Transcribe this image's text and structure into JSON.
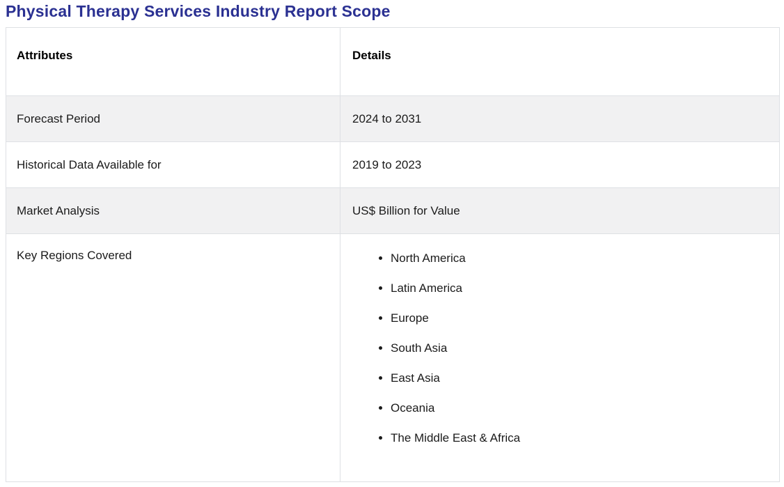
{
  "page": {
    "title": "Physical Therapy Services Industry Report Scope"
  },
  "table": {
    "headers": [
      "Attributes",
      "Details"
    ],
    "rows": [
      {
        "attribute": "Forecast Period",
        "detail": "2024 to 2031"
      },
      {
        "attribute": "Historical Data Available for",
        "detail": "2019 to 2023"
      },
      {
        "attribute": "Market Analysis",
        "detail": "US$ Billion for Value"
      },
      {
        "attribute": "Key Regions Covered",
        "details": [
          "North America",
          "Latin America",
          "Europe",
          "South Asia",
          "East Asia",
          "Oceania",
          "The Middle East & Africa"
        ]
      }
    ]
  },
  "colors": {
    "title_text": "#2b3192",
    "body_text": "#1b1b1b",
    "row_alt_bg": "#f1f1f2",
    "border": "#dee0e4",
    "background": "#ffffff"
  }
}
